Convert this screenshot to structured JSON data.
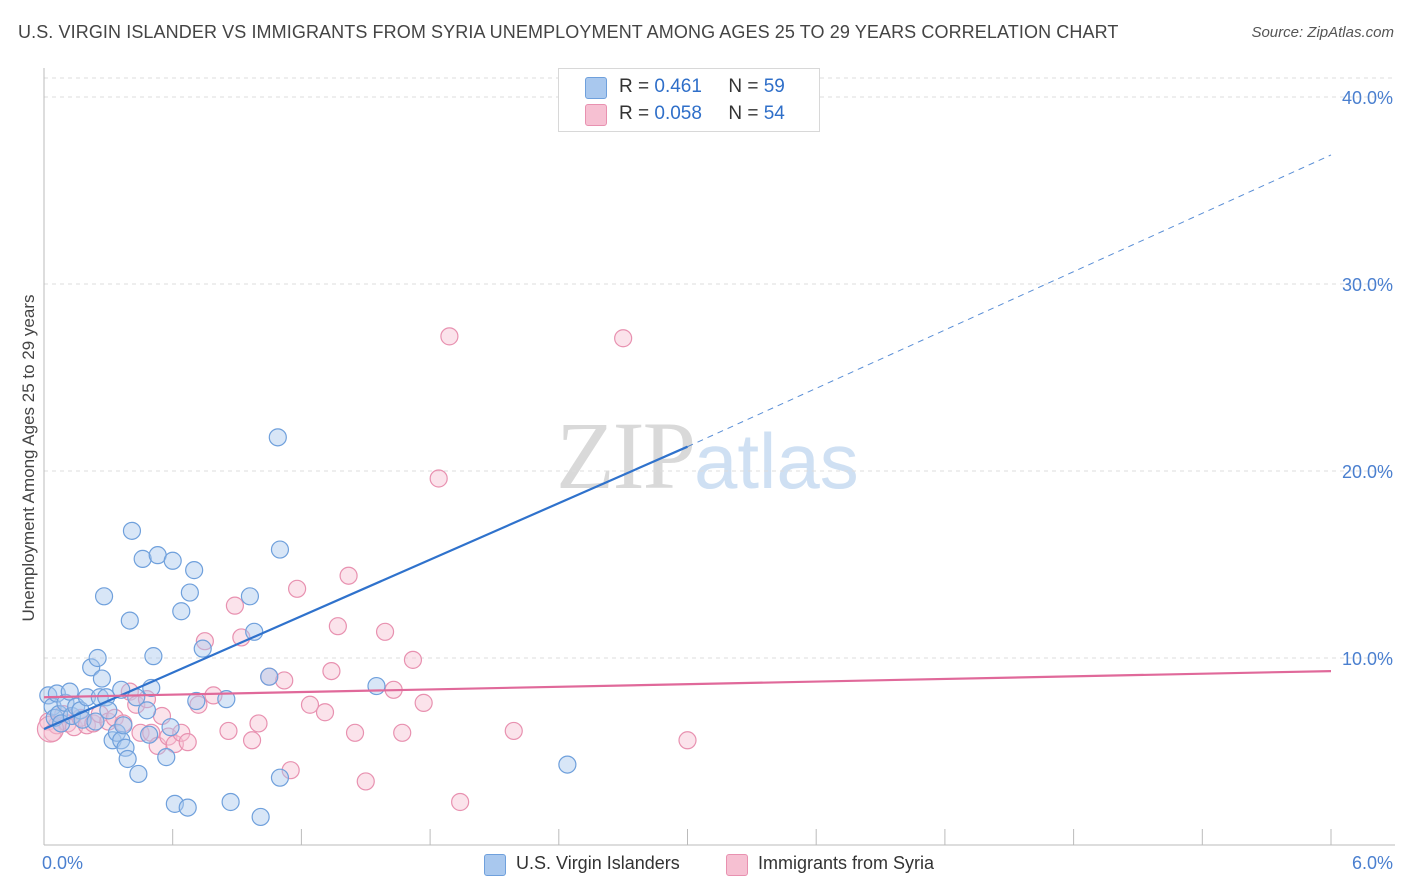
{
  "header": {
    "title": "U.S. VIRGIN ISLANDER VS IMMIGRANTS FROM SYRIA UNEMPLOYMENT AMONG AGES 25 TO 29 YEARS CORRELATION CHART",
    "source": "Source: ZipAtlas.com"
  },
  "legend": {
    "items": [
      {
        "r_label": "R =",
        "r_value": "0.461",
        "n_label": "N =",
        "n_value": "59"
      },
      {
        "r_label": "R =",
        "r_value": "0.058",
        "n_label": "N =",
        "n_value": "54"
      }
    ]
  },
  "bottom_legend": {
    "items": [
      "U.S. Virgin Islanders",
      "Immigrants from Syria"
    ]
  },
  "watermark": {
    "zip": "ZIP",
    "atlas": "atlas"
  },
  "colors": {
    "blue_fill": "#a9c8ee",
    "blue_stroke": "#6fa0dc",
    "blue_line": "#2f72cc",
    "pink_fill": "#f6c0d2",
    "pink_stroke": "#e891b0",
    "pink_line": "#e0699a",
    "tick": "#4a7fcf",
    "grid": "#dddddd"
  },
  "chart_data": {
    "type": "scatter",
    "title": "U.S. VIRGIN ISLANDER VS IMMIGRANTS FROM SYRIA UNEMPLOYMENT AMONG AGES 25 TO 29 YEARS CORRELATION CHART",
    "xlabel": "",
    "ylabel": "Unemployment Among Ages 25 to 29 years",
    "xlim": [
      0,
      6.0
    ],
    "ylim": [
      0,
      40.0
    ],
    "x_tick_labels": [
      "0.0%",
      "6.0%"
    ],
    "y_ticks": [
      10,
      20,
      30,
      40
    ],
    "y_tick_labels": [
      "10.0%",
      "20.0%",
      "30.0%",
      "40.0%"
    ],
    "grid": true,
    "legend_position": "top-center",
    "series": [
      {
        "name": "U.S. Virgin Islanders",
        "color": "#a9c8ee",
        "r": 0.461,
        "n": 59,
        "trend": {
          "x": [
            0.0,
            3.0
          ],
          "y": [
            6.2,
            21.3
          ],
          "dashed_to": [
            6.0,
            36.9
          ]
        },
        "points": [
          [
            0.02,
            8.0
          ],
          [
            0.04,
            7.4
          ],
          [
            0.05,
            6.8
          ],
          [
            0.06,
            8.1
          ],
          [
            0.07,
            7.0
          ],
          [
            0.08,
            6.5
          ],
          [
            0.1,
            7.6
          ],
          [
            0.12,
            8.2
          ],
          [
            0.13,
            6.9
          ],
          [
            0.15,
            7.4
          ],
          [
            0.17,
            7.2
          ],
          [
            0.18,
            6.7
          ],
          [
            0.2,
            7.9
          ],
          [
            0.22,
            9.5
          ],
          [
            0.24,
            6.6
          ],
          [
            0.25,
            10.0
          ],
          [
            0.26,
            7.9
          ],
          [
            0.27,
            8.9
          ],
          [
            0.28,
            13.3
          ],
          [
            0.29,
            7.9
          ],
          [
            0.3,
            7.2
          ],
          [
            0.32,
            5.6
          ],
          [
            0.34,
            6.0
          ],
          [
            0.36,
            5.6
          ],
          [
            0.36,
            8.3
          ],
          [
            0.37,
            6.4
          ],
          [
            0.38,
            5.2
          ],
          [
            0.39,
            4.6
          ],
          [
            0.4,
            12.0
          ],
          [
            0.41,
            16.8
          ],
          [
            0.43,
            7.9
          ],
          [
            0.44,
            3.8
          ],
          [
            0.46,
            15.3
          ],
          [
            0.48,
            7.2
          ],
          [
            0.49,
            5.9
          ],
          [
            0.5,
            8.4
          ],
          [
            0.51,
            10.1
          ],
          [
            0.53,
            15.5
          ],
          [
            0.57,
            4.7
          ],
          [
            0.59,
            6.3
          ],
          [
            0.6,
            15.2
          ],
          [
            0.61,
            2.2
          ],
          [
            0.64,
            12.5
          ],
          [
            0.67,
            2.0
          ],
          [
            0.68,
            13.5
          ],
          [
            0.7,
            14.7
          ],
          [
            0.71,
            7.7
          ],
          [
            0.74,
            10.5
          ],
          [
            0.85,
            7.8
          ],
          [
            0.87,
            2.3
          ],
          [
            0.96,
            13.3
          ],
          [
            0.98,
            11.4
          ],
          [
            1.01,
            1.5
          ],
          [
            1.05,
            9.0
          ],
          [
            1.09,
            21.8
          ],
          [
            1.1,
            15.8
          ],
          [
            1.1,
            3.6
          ],
          [
            1.55,
            8.5
          ],
          [
            2.44,
            4.3
          ]
        ]
      },
      {
        "name": "Immigrants from Syria",
        "color": "#f6c0d2",
        "r": 0.058,
        "n": 54,
        "trend": {
          "x": [
            0.0,
            6.0
          ],
          "y": [
            7.9,
            9.3
          ]
        },
        "points": [
          [
            0.02,
            6.6
          ],
          [
            0.04,
            6.0
          ],
          [
            0.06,
            6.4
          ],
          [
            0.09,
            7.0
          ],
          [
            0.11,
            6.5
          ],
          [
            0.14,
            6.3
          ],
          [
            0.17,
            6.8
          ],
          [
            0.2,
            6.4
          ],
          [
            0.23,
            6.5
          ],
          [
            0.26,
            7.0
          ],
          [
            0.3,
            6.6
          ],
          [
            0.33,
            6.8
          ],
          [
            0.37,
            6.5
          ],
          [
            0.4,
            8.2
          ],
          [
            0.43,
            7.5
          ],
          [
            0.45,
            6.0
          ],
          [
            0.48,
            7.8
          ],
          [
            0.5,
            6.0
          ],
          [
            0.53,
            5.3
          ],
          [
            0.55,
            6.9
          ],
          [
            0.58,
            5.8
          ],
          [
            0.61,
            5.4
          ],
          [
            0.64,
            6.0
          ],
          [
            0.67,
            5.5
          ],
          [
            0.72,
            7.5
          ],
          [
            0.75,
            10.9
          ],
          [
            0.79,
            8.0
          ],
          [
            0.86,
            6.1
          ],
          [
            0.89,
            12.8
          ],
          [
            0.92,
            11.1
          ],
          [
            0.97,
            5.6
          ],
          [
            1.0,
            6.5
          ],
          [
            1.05,
            9.0
          ],
          [
            1.12,
            8.8
          ],
          [
            1.15,
            4.0
          ],
          [
            1.18,
            13.7
          ],
          [
            1.24,
            7.5
          ],
          [
            1.31,
            7.1
          ],
          [
            1.34,
            9.3
          ],
          [
            1.37,
            11.7
          ],
          [
            1.42,
            14.4
          ],
          [
            1.45,
            6.0
          ],
          [
            1.5,
            3.4
          ],
          [
            1.59,
            11.4
          ],
          [
            1.63,
            8.3
          ],
          [
            1.67,
            6.0
          ],
          [
            1.72,
            9.9
          ],
          [
            1.77,
            7.6
          ],
          [
            1.84,
            19.6
          ],
          [
            1.89,
            27.2
          ],
          [
            1.94,
            2.3
          ],
          [
            2.19,
            6.1
          ],
          [
            2.7,
            27.1
          ],
          [
            3.0,
            5.6
          ]
        ]
      }
    ]
  }
}
